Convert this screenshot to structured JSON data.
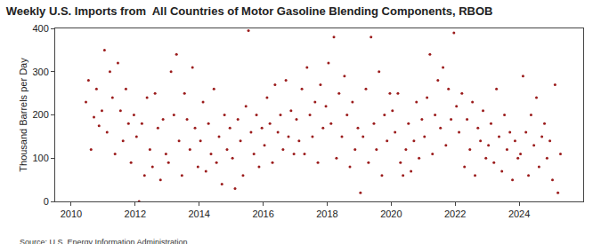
{
  "chart_data": {
    "type": "scatter",
    "title": "Weekly U.S. Imports from  All Countries of Motor Gasoline Blending Components, RBOB",
    "y_label": "Thousand Barrels per Day",
    "source": "Source: U.S. Energy Information Administration",
    "color": "#9b1c1c",
    "marker": "circle",
    "grid": false,
    "xlim": [
      2009.5,
      2026
    ],
    "xticks": [
      2010,
      2012,
      2014,
      2016,
      2018,
      2020,
      2022,
      2024
    ],
    "ylim": [
      0,
      400
    ],
    "yticks": [
      0,
      100,
      200,
      300,
      400
    ],
    "x": [
      2010.46,
      2010.54,
      2010.62,
      2010.71,
      2010.79,
      2010.87,
      2010.96,
      2011.04,
      2011.12,
      2011.21,
      2011.29,
      2011.37,
      2011.46,
      2011.54,
      2011.62,
      2011.71,
      2011.79,
      2011.87,
      2011.96,
      2012.04,
      2012.12,
      2012.21,
      2012.29,
      2012.37,
      2012.46,
      2012.54,
      2012.62,
      2012.71,
      2012.79,
      2012.87,
      2012.96,
      2013.04,
      2013.12,
      2013.21,
      2013.29,
      2013.37,
      2013.46,
      2013.54,
      2013.62,
      2013.71,
      2013.79,
      2013.87,
      2013.96,
      2014.04,
      2014.12,
      2014.21,
      2014.29,
      2014.37,
      2014.46,
      2014.54,
      2014.62,
      2014.71,
      2014.79,
      2014.87,
      2014.96,
      2015.04,
      2015.12,
      2015.21,
      2015.29,
      2015.37,
      2015.46,
      2015.54,
      2015.62,
      2015.71,
      2015.79,
      2015.87,
      2015.96,
      2016.04,
      2016.12,
      2016.21,
      2016.29,
      2016.37,
      2016.46,
      2016.54,
      2016.62,
      2016.71,
      2016.79,
      2016.87,
      2016.96,
      2017.04,
      2017.12,
      2017.21,
      2017.29,
      2017.37,
      2017.46,
      2017.54,
      2017.62,
      2017.71,
      2017.79,
      2017.87,
      2017.96,
      2018.04,
      2018.12,
      2018.21,
      2018.29,
      2018.37,
      2018.46,
      2018.54,
      2018.62,
      2018.71,
      2018.79,
      2018.87,
      2018.96,
      2019.04,
      2019.12,
      2019.21,
      2019.29,
      2019.37,
      2019.46,
      2019.54,
      2019.62,
      2019.71,
      2019.79,
      2019.87,
      2019.96,
      2020.04,
      2020.12,
      2020.21,
      2020.29,
      2020.37,
      2020.46,
      2020.54,
      2020.62,
      2020.71,
      2020.79,
      2020.87,
      2020.96,
      2021.04,
      2021.12,
      2021.21,
      2021.29,
      2021.37,
      2021.46,
      2021.54,
      2021.62,
      2021.71,
      2021.79,
      2021.87,
      2021.96,
      2022.04,
      2022.12,
      2022.21,
      2022.29,
      2022.37,
      2022.46,
      2022.54,
      2022.62,
      2022.71,
      2022.79,
      2022.87,
      2022.96,
      2023.04,
      2023.12,
      2023.21,
      2023.29,
      2023.37,
      2023.46,
      2023.54,
      2023.62,
      2023.71,
      2023.79,
      2023.87,
      2023.96,
      2024.04,
      2024.12,
      2024.21,
      2024.29,
      2024.37,
      2024.46,
      2024.54,
      2024.62,
      2024.71,
      2024.79,
      2024.87,
      2024.96,
      2025.04,
      2025.12,
      2025.21,
      2025.29
    ],
    "values": [
      230,
      280,
      120,
      195,
      260,
      175,
      210,
      350,
      160,
      300,
      240,
      110,
      320,
      210,
      140,
      260,
      180,
      90,
      200,
      150,
      0,
      180,
      60,
      240,
      120,
      80,
      250,
      170,
      50,
      190,
      110,
      90,
      300,
      200,
      340,
      140,
      60,
      250,
      190,
      120,
      310,
      170,
      80,
      140,
      230,
      70,
      180,
      110,
      260,
      90,
      150,
      40,
      200,
      120,
      170,
      100,
      30,
      190,
      140,
      60,
      220,
      395,
      160,
      110,
      200,
      80,
      170,
      130,
      240,
      180,
      90,
      270,
      160,
      200,
      120,
      280,
      150,
      210,
      110,
      190,
      140,
      260,
      110,
      310,
      200,
      150,
      230,
      90,
      270,
      170,
      220,
      320,
      180,
      380,
      100,
      250,
      150,
      290,
      200,
      80,
      230,
      120,
      170,
      20,
      150,
      260,
      90,
      380,
      180,
      120,
      300,
      60,
      200,
      140,
      250,
      210,
      160,
      250,
      90,
      60,
      120,
      180,
      70,
      140,
      230,
      100,
      190,
      150,
      240,
      340,
      110,
      200,
      280,
      170,
      310,
      130,
      260,
      190,
      390,
      220,
      160,
      250,
      80,
      190,
      120,
      230,
      60,
      170,
      140,
      210,
      100,
      130,
      180,
      90,
      260,
      150,
      70,
      200,
      120,
      160,
      50,
      140,
      100,
      110,
      290,
      160,
      60,
      200,
      130,
      240,
      80,
      150,
      180,
      100,
      140,
      50,
      270,
      20,
      110
    ]
  }
}
